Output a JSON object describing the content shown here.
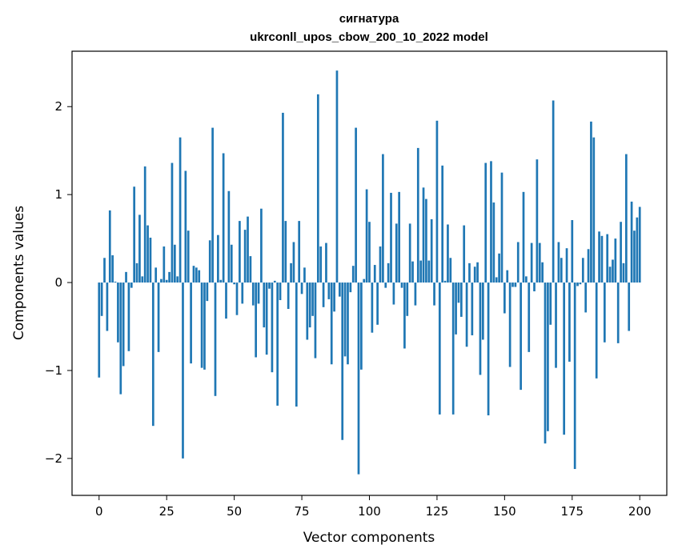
{
  "chart_data": {
    "type": "bar",
    "title": "сигнатура",
    "subtitle": "ukrconll_upos_cbow_200_10_2022 model",
    "xlabel": "Vector components",
    "ylabel": "Components values",
    "xlim": [
      -10,
      210
    ],
    "ylim": [
      -2.42,
      2.63
    ],
    "xticks": [
      0,
      25,
      50,
      75,
      100,
      125,
      150,
      175,
      200
    ],
    "xtick_labels": [
      "0",
      "25",
      "50",
      "75",
      "100",
      "125",
      "150",
      "175",
      "200"
    ],
    "yticks": [
      -2,
      -1,
      0,
      1,
      2
    ],
    "ytick_labels": [
      "−2",
      "−1",
      "0",
      "1",
      "2"
    ],
    "bar_color": "#1f77b4",
    "grid": false,
    "values": [
      -1.08,
      -0.38,
      0.28,
      -0.55,
      0.82,
      0.31,
      0.01,
      -0.68,
      -1.27,
      -0.95,
      0.12,
      -0.78,
      -0.06,
      1.09,
      0.22,
      0.77,
      0.07,
      1.32,
      0.65,
      0.51,
      -1.63,
      0.17,
      -0.79,
      0.04,
      0.41,
      0.03,
      0.12,
      1.36,
      0.43,
      0.07,
      1.65,
      -2.0,
      1.27,
      0.59,
      -0.92,
      0.19,
      0.17,
      0.14,
      -0.97,
      -0.99,
      -0.21,
      0.48,
      1.76,
      -1.29,
      0.54,
      0.03,
      1.47,
      -0.41,
      1.04,
      0.43,
      -0.02,
      -0.37,
      0.7,
      -0.24,
      0.6,
      0.75,
      0.3,
      -0.26,
      -0.85,
      -0.24,
      0.84,
      -0.51,
      -0.82,
      -0.07,
      -1.02,
      0.02,
      -1.4,
      -0.2,
      1.93,
      0.7,
      -0.3,
      0.22,
      0.46,
      -1.41,
      0.7,
      -0.13,
      0.17,
      -0.65,
      -0.51,
      -0.38,
      -0.86,
      2.14,
      0.41,
      -0.28,
      0.45,
      -0.19,
      -0.93,
      -0.33,
      2.41,
      -0.16,
      -1.79,
      -0.84,
      -0.93,
      -0.11,
      0.19,
      1.76,
      -2.18,
      -0.99,
      0.04,
      1.06,
      0.69,
      -0.57,
      0.2,
      -0.48,
      0.41,
      1.46,
      -0.06,
      0.22,
      1.02,
      -0.25,
      0.67,
      1.03,
      -0.06,
      -0.75,
      -0.38,
      0.67,
      0.24,
      -0.26,
      1.53,
      0.25,
      1.08,
      0.95,
      0.25,
      0.72,
      -0.26,
      1.84,
      -1.5,
      1.33,
      0.02,
      0.66,
      0.28,
      -1.5,
      -0.59,
      -0.23,
      -0.39,
      0.65,
      -0.73,
      0.22,
      -0.6,
      0.18,
      0.23,
      -1.05,
      -0.65,
      1.36,
      -1.51,
      1.38,
      0.91,
      0.06,
      0.33,
      1.25,
      -0.35,
      0.14,
      -0.96,
      -0.05,
      -0.05,
      0.46,
      -1.22,
      1.03,
      0.07,
      -0.79,
      0.45,
      -0.1,
      1.4,
      0.45,
      0.23,
      -1.83,
      -1.69,
      -0.48,
      2.07,
      -0.97,
      0.46,
      0.28,
      -1.73,
      0.39,
      -0.9,
      0.71,
      -2.12,
      -0.04,
      -0.02,
      0.28,
      -0.34,
      0.38,
      1.83,
      1.65,
      -1.09,
      0.58,
      0.53,
      -0.68,
      0.55,
      0.18,
      0.26,
      0.5,
      -0.69,
      0.69,
      0.22,
      1.46,
      -0.55,
      0.92,
      0.59,
      0.74,
      0.86
    ]
  }
}
